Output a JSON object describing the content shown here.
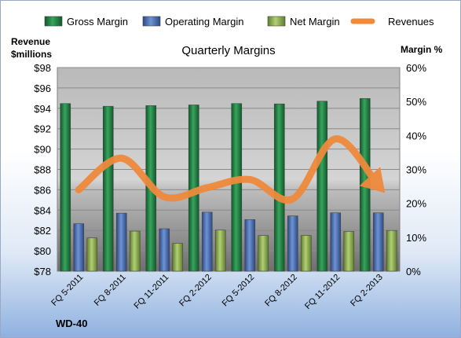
{
  "chart_data": {
    "type": "bar",
    "title": "Quarterly Margins",
    "company_label": "WD-40",
    "left_axis_label": [
      "Revenue",
      "$millions"
    ],
    "right_axis_label": "Margin %",
    "categories": [
      "FQ 5-2011",
      "FQ 8-2011",
      "FQ 11-2011",
      "FQ 2-2012",
      "FQ 5-2012",
      "FQ 8-2012",
      "FQ 11-2012",
      "FQ 2-2013"
    ],
    "series": [
      {
        "name": "Gross Margin",
        "axis": "right",
        "values": [
          49.4,
          48.6,
          48.8,
          49.0,
          49.4,
          49.3,
          50.1,
          50.9
        ],
        "color": "#1e8a45"
      },
      {
        "name": "Operating Margin",
        "axis": "right",
        "values": [
          14.0,
          17.1,
          12.5,
          17.4,
          15.2,
          16.3,
          17.2,
          17.2
        ],
        "color": "#4a6fb5"
      },
      {
        "name": "Net Margin",
        "axis": "right",
        "values": [
          9.8,
          11.8,
          8.2,
          12.1,
          10.5,
          10.5,
          11.7,
          12.0
        ],
        "color": "#8cb04f"
      },
      {
        "name": "Revenues",
        "type": "line",
        "axis": "left",
        "values": [
          86.0,
          89.1,
          85.3,
          86.2,
          87.0,
          85.1,
          91.0,
          86.4
        ],
        "color": "#ef8a3c"
      }
    ],
    "left_axis": {
      "min": 78,
      "max": 98,
      "step": 2,
      "tick_labels": [
        "$78",
        "$80",
        "$82",
        "$84",
        "$86",
        "$88",
        "$90",
        "$92",
        "$94",
        "$96",
        "$98"
      ]
    },
    "right_axis": {
      "min": 0,
      "max": 60,
      "step": 10,
      "tick_labels": [
        "0%",
        "10%",
        "20%",
        "30%",
        "40%",
        "50%",
        "60%"
      ]
    },
    "grid": true,
    "legend_position": "top"
  }
}
